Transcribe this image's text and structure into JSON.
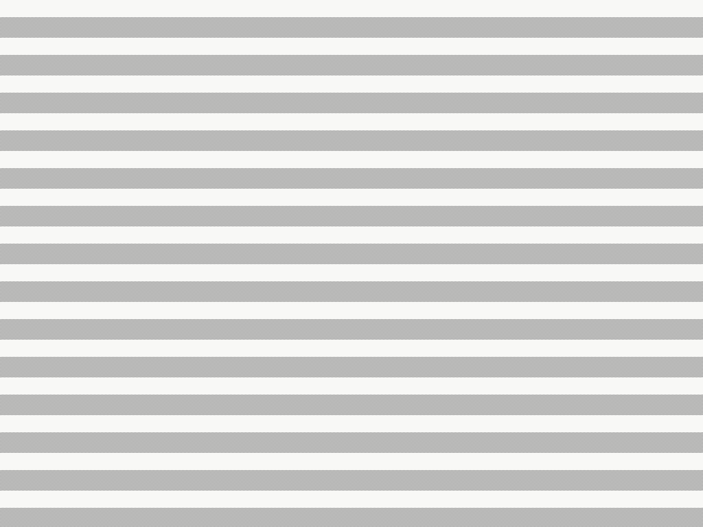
{
  "background": {
    "pattern": "horizontal-checkered-stripes",
    "light_color": "#f8f8f6",
    "dark_color": "#7a7a7a"
  }
}
